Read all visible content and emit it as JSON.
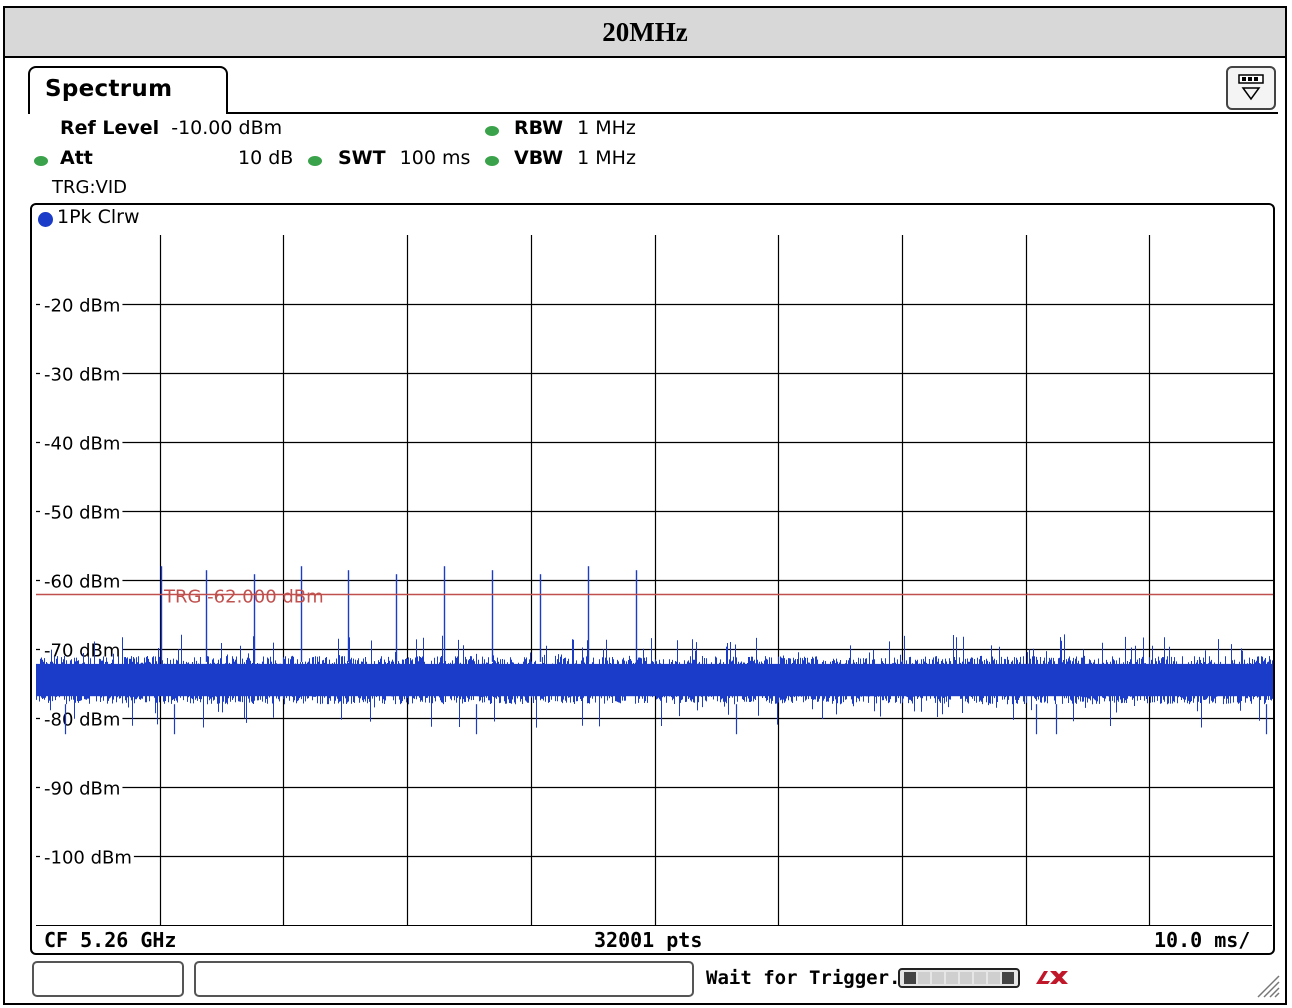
{
  "heading": "20MHz",
  "tab": {
    "label": "Spectrum"
  },
  "settings": {
    "ref_level_label": "Ref Level",
    "ref_level_value": "-10.00 dBm",
    "att_label": "Att",
    "att_value": "10 dB",
    "swt_label": "SWT",
    "swt_value": "100 ms",
    "rbw_label": "RBW",
    "rbw_value": "1 MHz",
    "vbw_label": "VBW",
    "vbw_value": "1 MHz",
    "trigger": "TRG:VID"
  },
  "trace": {
    "label": "1Pk Clrw",
    "color": "#1a3cc8"
  },
  "colors": {
    "indicator": "#3aa24a",
    "trigger_line": "#c0504d",
    "grid": "#000000"
  },
  "chart_data": {
    "type": "line",
    "y_tick_labels": [
      "-20 dBm",
      "-30 dBm",
      "-40 dBm",
      "-50 dBm",
      "-60 dBm",
      "-70 dBm",
      "-80 dBm",
      "-90 dBm",
      "-100 dBm"
    ],
    "y_ticks": [
      -20,
      -30,
      -40,
      -50,
      -60,
      -70,
      -80,
      -90,
      -100
    ],
    "ylim": [
      -110,
      -10
    ],
    "x_divisions": 10,
    "grid": true,
    "trigger_level": -62,
    "trigger_label": "TRG  -62.000 dBm",
    "noise_floor_band": [
      -78,
      -71
    ],
    "spike_level": -58,
    "series": [
      {
        "values_description_band": [
          -82,
          -66
        ]
      }
    ]
  },
  "footer": {
    "center_freq": "CF 5.26 GHz",
    "points": "32001 pts",
    "time_per_div": "10.0 ms/"
  },
  "status": {
    "message": "Wait for Trigger..."
  },
  "icons": {
    "menu": "dropdown-menu-icon",
    "lxi": "lxi-logo-icon",
    "grip": "resize-grip-icon"
  }
}
